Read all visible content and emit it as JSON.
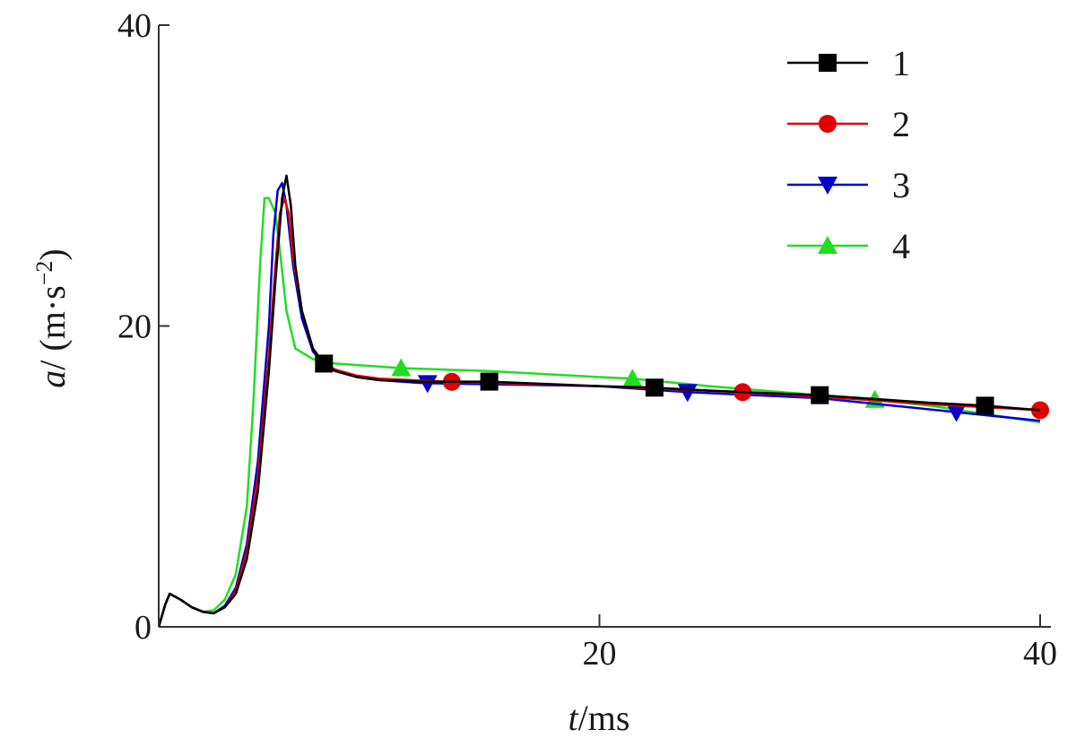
{
  "chart_data": {
    "type": "line",
    "title": "",
    "xlabel": {
      "var": "t",
      "unit": "ms"
    },
    "ylabel": {
      "var": "a",
      "unit": "m·s",
      "unit_exp": "−2"
    },
    "xlim": [
      0,
      40
    ],
    "ylim": [
      0,
      40
    ],
    "xticks": [
      20,
      40
    ],
    "yticks": [
      0,
      20,
      40
    ],
    "grid": false,
    "legend_position": "top-right",
    "series": [
      {
        "name": "1",
        "color": "#000000",
        "marker": "square",
        "x": [
          0,
          0.3,
          0.5,
          1.0,
          1.5,
          2.0,
          2.5,
          3.0,
          3.5,
          4.0,
          4.5,
          5.0,
          5.3,
          5.6,
          5.8,
          6.0,
          6.2,
          6.5,
          7.0,
          7.5,
          8.0,
          9.0,
          10,
          12,
          15,
          20,
          22.5,
          25,
          30,
          35,
          37.5,
          40
        ],
        "y": [
          0,
          1.5,
          2.2,
          1.8,
          1.3,
          1.0,
          0.9,
          1.3,
          2.2,
          4.5,
          9.0,
          17.0,
          23.0,
          28.5,
          30.0,
          28.0,
          24.0,
          21.0,
          18.5,
          17.5,
          17.0,
          16.6,
          16.4,
          16.3,
          16.3,
          16.0,
          15.9,
          15.7,
          15.4,
          14.9,
          14.7,
          14.4
        ],
        "marker_x": [
          7.5,
          15.0,
          22.5,
          30.0,
          37.5
        ]
      },
      {
        "name": "2",
        "color": "#e00000",
        "marker": "circle",
        "x": [
          0,
          0.3,
          0.5,
          1.0,
          1.5,
          2.0,
          2.5,
          3.0,
          3.5,
          4.0,
          4.5,
          5.0,
          5.3,
          5.5,
          5.7,
          5.9,
          6.1,
          6.5,
          7.0,
          7.5,
          8.0,
          9.0,
          10,
          13,
          20,
          26.5,
          30,
          35,
          40
        ],
        "y": [
          0,
          1.5,
          2.2,
          1.8,
          1.3,
          1.0,
          0.9,
          1.3,
          2.4,
          5.0,
          10.0,
          18.0,
          24.0,
          27.5,
          28.5,
          27.5,
          24.5,
          21.0,
          18.5,
          17.5,
          17.1,
          16.7,
          16.5,
          16.3,
          16.0,
          15.6,
          15.3,
          14.8,
          14.4
        ],
        "marker_x": [
          13.3,
          26.5,
          40.0
        ]
      },
      {
        "name": "3",
        "color": "#0000cc",
        "marker": "triangle-down",
        "x": [
          0,
          0.3,
          0.5,
          1.0,
          1.5,
          2.0,
          2.5,
          3.0,
          3.5,
          4.0,
          4.5,
          5.0,
          5.2,
          5.4,
          5.6,
          5.8,
          6.1,
          6.5,
          7.0,
          7.5,
          8.0,
          9.0,
          10,
          12,
          20,
          24,
          30,
          36,
          40
        ],
        "y": [
          0,
          1.5,
          2.2,
          1.8,
          1.3,
          1.0,
          0.9,
          1.4,
          2.6,
          5.5,
          11.0,
          20.0,
          26.0,
          29.0,
          29.5,
          28.0,
          24.0,
          20.5,
          18.3,
          17.5,
          17.1,
          16.6,
          16.4,
          16.2,
          16.0,
          15.6,
          15.2,
          14.3,
          13.7
        ],
        "marker_x": [
          12.2,
          24.0,
          36.2
        ]
      },
      {
        "name": "4",
        "color": "#22dd22",
        "marker": "triangle-up",
        "x": [
          0,
          0.3,
          0.5,
          1.0,
          1.5,
          2.0,
          2.5,
          3.0,
          3.5,
          4.0,
          4.3,
          4.6,
          4.8,
          5.0,
          5.3,
          5.5,
          5.8,
          6.2,
          7.0,
          8.0,
          9.0,
          10,
          11,
          15,
          20,
          21.5,
          25,
          30,
          32.5,
          35,
          40
        ],
        "y": [
          0,
          1.5,
          2.2,
          1.8,
          1.3,
          1.0,
          1.1,
          1.8,
          3.5,
          8.0,
          15.0,
          24.0,
          28.5,
          28.5,
          27.5,
          25.0,
          21.0,
          18.5,
          17.8,
          17.5,
          17.4,
          17.3,
          17.2,
          17.0,
          16.6,
          16.5,
          16.0,
          15.4,
          15.1,
          14.7,
          13.6
        ],
        "marker_x": [
          11.0,
          21.5,
          32.5
        ]
      }
    ]
  }
}
